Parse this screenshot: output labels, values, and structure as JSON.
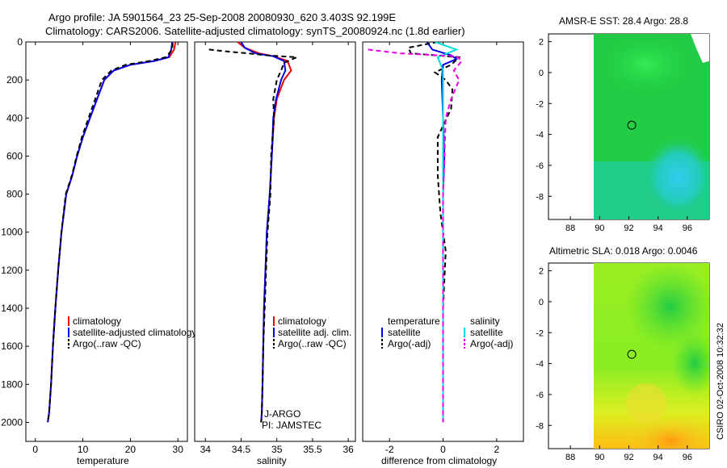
{
  "figure": {
    "title_line1": "Argo profile: JA 5901564_23 25-Sep-2008 20080930_620 3.403S 92.199E",
    "title_line2": "Climatology: CARS2006. Satellite-adjusted climatology: synTS_20080924.nc (1.8d earlier)",
    "side_label": "CSIRO 02-Oct-2008 10:32:32"
  },
  "colors": {
    "climatology": "#ee0000",
    "satellite": "#0000ee",
    "argo": "#000000",
    "salinity_satellite": "#00dddd",
    "salinity_argo": "#ee00ee"
  },
  "chart_data": [
    {
      "type": "line",
      "id": "temperature",
      "xlabel": "temperature",
      "ylabel": "",
      "xlim": [
        -2,
        32
      ],
      "ylim": [
        2100,
        0
      ],
      "xticks": [
        0,
        10,
        20,
        30
      ],
      "yticks": [
        0,
        200,
        400,
        600,
        800,
        1000,
        1200,
        1400,
        1600,
        1800,
        2000
      ],
      "legend": {
        "placement": "bottom-right",
        "entries": [
          "climatology",
          "satellite-adjusted climatology",
          "Argo(..raw -QC)"
        ]
      },
      "series": [
        {
          "name": "climatology",
          "color": "#ee0000",
          "dash": "solid",
          "x": [
            29.5,
            29.2,
            28.2,
            25,
            20,
            16.5,
            14.5,
            13,
            11.5,
            10,
            8.8,
            7.8,
            6.5,
            5.5,
            4.8,
            4.2,
            3.7,
            3.3,
            2.9,
            2.6
          ],
          "y": [
            0,
            40,
            80,
            100,
            120,
            150,
            200,
            300,
            400,
            500,
            600,
            700,
            800,
            1000,
            1200,
            1400,
            1600,
            1800,
            1950,
            2000
          ]
        },
        {
          "name": "satellite-adjusted climatology",
          "color": "#0000ee",
          "dash": "solid",
          "x": [
            28.8,
            28.6,
            28.0,
            25,
            20,
            16.5,
            14.5,
            13,
            11.5,
            10,
            8.8,
            7.8,
            6.5,
            5.5,
            4.8,
            4.2,
            3.7,
            3.3,
            2.9,
            2.6
          ],
          "y": [
            0,
            40,
            80,
            100,
            120,
            150,
            200,
            300,
            400,
            500,
            600,
            700,
            800,
            1000,
            1200,
            1400,
            1600,
            1800,
            1950,
            2000
          ]
        },
        {
          "name": "Argo(..raw -QC)",
          "color": "#000000",
          "dash": "dashed",
          "x": [
            28.9,
            28.8,
            27.5,
            24,
            19,
            16.0,
            14.0,
            12.6,
            11.2,
            9.8,
            8.7,
            7.7,
            6.4,
            5.5,
            4.8,
            4.2,
            3.7,
            3.3,
            2.9,
            2.6
          ],
          "y": [
            5,
            40,
            80,
            100,
            120,
            150,
            200,
            300,
            400,
            500,
            600,
            700,
            800,
            1000,
            1200,
            1400,
            1600,
            1800,
            1950,
            2000
          ]
        }
      ],
      "annotations": []
    },
    {
      "type": "line",
      "id": "salinity",
      "xlabel": "salinity",
      "ylabel": "",
      "xlim": [
        33.85,
        36.1
      ],
      "ylim": [
        2100,
        0
      ],
      "xticks": [
        34,
        34.5,
        35,
        35.5,
        36
      ],
      "yticks": [],
      "legend": {
        "placement": "bottom-right",
        "entries": [
          "climatology",
          "satellite adj. clim.",
          "Argo(..raw -QC)"
        ]
      },
      "series": [
        {
          "name": "climatology",
          "color": "#ee0000",
          "dash": "solid",
          "x": [
            34.45,
            34.55,
            34.75,
            34.95,
            35.15,
            35.2,
            35.1,
            35.0,
            34.96,
            34.93,
            34.9,
            34.86,
            34.84,
            34.82,
            34.81,
            34.8,
            34.79,
            34.78
          ],
          "y": [
            0,
            30,
            60,
            75,
            100,
            150,
            200,
            300,
            400,
            600,
            800,
            1000,
            1200,
            1400,
            1600,
            1800,
            1950,
            2000
          ]
        },
        {
          "name": "satellite adj. clim.",
          "color": "#0000ee",
          "dash": "solid",
          "x": [
            34.5,
            34.55,
            34.7,
            34.95,
            35.1,
            35.12,
            35.06,
            34.99,
            34.95,
            34.93,
            34.9,
            34.86,
            34.84,
            34.82,
            34.81,
            34.8,
            34.79,
            34.78
          ],
          "y": [
            0,
            30,
            60,
            75,
            100,
            150,
            200,
            300,
            400,
            600,
            800,
            1000,
            1200,
            1400,
            1600,
            1800,
            1950,
            2000
          ]
        },
        {
          "name": "Argo(..raw -QC)",
          "color": "#000000",
          "dash": "dashed",
          "x": [
            34.05,
            34.3,
            34.6,
            34.85,
            35.28,
            35.1,
            35.06,
            35.0,
            34.95,
            34.96,
            34.92,
            34.91,
            34.87,
            34.85,
            34.83,
            34.81,
            34.8,
            34.79,
            34.78
          ],
          "y": [
            40,
            50,
            60,
            70,
            80,
            110,
            150,
            200,
            300,
            400,
            600,
            800,
            1000,
            1200,
            1400,
            1600,
            1800,
            1950,
            2000
          ]
        }
      ],
      "annotations": [
        "J-ARGO",
        "PI: JAMSTEC"
      ]
    },
    {
      "type": "line",
      "id": "difference",
      "xlabel": "difference from climatology",
      "ylabel": "",
      "xlim": [
        -3,
        3
      ],
      "ylim": [
        2100,
        0
      ],
      "xticks": [
        -2,
        0,
        2
      ],
      "yticks": [],
      "legend": {
        "placement": "bottom",
        "temperature_header": "temperature",
        "salinity_header": "salinity",
        "entries": [
          "satellite",
          "Argo(-adj)",
          "satellite",
          "Argo(-adj)"
        ]
      },
      "series": [
        {
          "name": "temperature satellite",
          "color": "#0000ee",
          "dash": "solid",
          "x": [
            -0.6,
            -0.4,
            0.3,
            0.5,
            0.0,
            -0.05,
            0.0,
            0.05,
            0.0,
            0.0,
            0.0,
            0.0,
            0.0
          ],
          "y": [
            0,
            40,
            70,
            90,
            120,
            200,
            400,
            600,
            800,
            1200,
            1600,
            1900,
            2000
          ]
        },
        {
          "name": "temperature Argo(-adj)",
          "color": "#000000",
          "dash": "dashed",
          "x": [
            -0.2,
            -1.3,
            -1.2,
            0.6,
            0.3,
            -0.3,
            0.1,
            0.35,
            0.3,
            -0.2,
            -0.2,
            -0.1,
            0.1,
            0.0,
            0.0,
            0.0
          ],
          "y": [
            0,
            30,
            60,
            80,
            120,
            160,
            200,
            250,
            350,
            500,
            700,
            900,
            1100,
            1400,
            1700,
            2000
          ]
        },
        {
          "name": "salinity satellite",
          "color": "#00dddd",
          "dash": "solid",
          "x": [
            -0.3,
            0.5,
            -0.2,
            0.0,
            0.0,
            0.0,
            0.0,
            0.0,
            0.0,
            0.0
          ],
          "y": [
            0,
            40,
            80,
            150,
            300,
            600,
            1000,
            1400,
            1800,
            2000
          ]
        },
        {
          "name": "salinity Argo(-adj)",
          "color": "#ee00ee",
          "dash": "dashed",
          "x": [
            -2.8,
            -1.6,
            0.5,
            0.7,
            0.4,
            0.6,
            0.3,
            0.1,
            0.0,
            0.0
          ],
          "y": [
            40,
            60,
            75,
            100,
            150,
            200,
            300,
            400,
            800,
            2000
          ]
        }
      ],
      "annotations": []
    },
    {
      "type": "heatmap",
      "id": "sst_map",
      "title": "AMSR-E SST: 28.4  Argo: 28.8",
      "xlim": [
        86.5,
        97.5
      ],
      "ylim": [
        -9.5,
        2.5
      ],
      "xticks": [
        88,
        90,
        92,
        94,
        96
      ],
      "yticks": [
        2,
        0,
        -2,
        -4,
        -6,
        -8
      ],
      "data_extent_x": [
        90,
        97.5
      ],
      "argo_position": {
        "lon": 92.199,
        "lat": -3.403
      }
    },
    {
      "type": "heatmap",
      "id": "sla_map",
      "title": "Altimetric SLA: 0.018  Argo: 0.0046",
      "xlim": [
        86.5,
        97.5
      ],
      "ylim": [
        -9.5,
        2.5
      ],
      "xticks": [
        88,
        90,
        92,
        94,
        96
      ],
      "yticks": [
        2,
        0,
        -2,
        -4,
        -6,
        -8
      ],
      "data_extent_x": [
        90,
        97.5
      ],
      "argo_position": {
        "lon": 92.199,
        "lat": -3.403
      }
    }
  ]
}
